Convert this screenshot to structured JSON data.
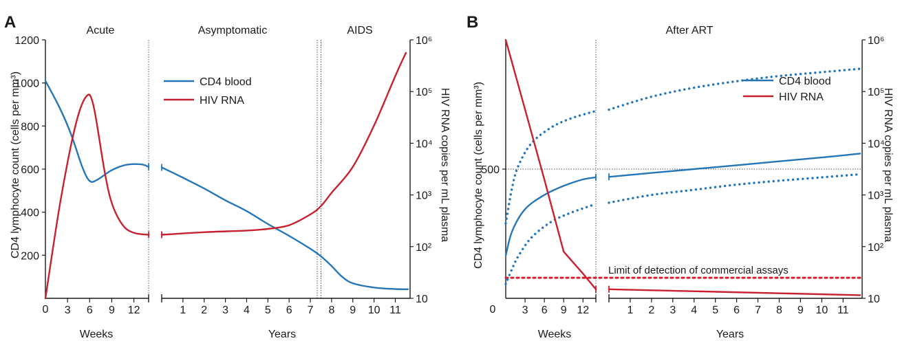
{
  "colors": {
    "cd4": "#2476b8",
    "hiv": "#c8202f",
    "axis": "#1a1a1a"
  },
  "chart_data": [
    {
      "panel": "A",
      "type": "line",
      "phases": [
        "Acute",
        "Asymptomatic",
        "AIDS"
      ],
      "left_axis": {
        "label": "CD4 lymphocyte count (cells per mm³)",
        "ylim": [
          0,
          1200
        ],
        "ticks": [
          "0",
          "200",
          "400",
          "600",
          "800",
          "1000",
          "1200"
        ]
      },
      "right_axis": {
        "label": "HIV RNA copies per mL plasma",
        "scale": "log",
        "ylim": [
          10,
          1000000
        ],
        "ticks": [
          "10",
          "10²",
          "10³",
          "10⁴",
          "10⁵",
          "10⁶"
        ]
      },
      "x_weeks": {
        "label": "Weeks",
        "range": [
          0,
          14
        ],
        "ticks": [
          "3",
          "6",
          "9",
          "12"
        ]
      },
      "x_years": {
        "label": "Years",
        "range": [
          0,
          11.6
        ],
        "ticks": [
          "1",
          "2",
          "3",
          "4",
          "5",
          "6",
          "7",
          "8",
          "9",
          "10",
          "11"
        ]
      },
      "x_origin_label": "0",
      "legend": [
        "CD4 blood",
        "HIV RNA"
      ],
      "series": [
        {
          "name": "CD4 blood",
          "axis": "left",
          "weeks": [
            [
              0,
              1010
            ],
            [
              2,
              880
            ],
            [
              3.5,
              760
            ],
            [
              5,
              610
            ],
            [
              6,
              545
            ],
            [
              7,
              550
            ],
            [
              9,
              595
            ],
            [
              11,
              620
            ],
            [
              13,
              622
            ],
            [
              14,
              610
            ]
          ],
          "years": [
            [
              0,
              608
            ],
            [
              1,
              560
            ],
            [
              2,
              510
            ],
            [
              3,
              455
            ],
            [
              4,
              405
            ],
            [
              5,
              345
            ],
            [
              6,
              290
            ],
            [
              7,
              230
            ],
            [
              7.5,
              195
            ],
            [
              8,
              150
            ],
            [
              8.5,
              100
            ],
            [
              9,
              70
            ],
            [
              10,
              50
            ],
            [
              11,
              43
            ],
            [
              11.6,
              42
            ]
          ]
        },
        {
          "name": "HIV RNA",
          "axis": "right",
          "weeks": [
            [
              0,
              10
            ],
            [
              2,
              700
            ],
            [
              4,
              20000
            ],
            [
              5.5,
              79000
            ],
            [
              6.5,
              55000
            ],
            [
              8,
              3000
            ],
            [
              9,
              700
            ],
            [
              10.5,
              260
            ],
            [
              12,
              185
            ],
            [
              14,
              170
            ]
          ],
          "years": [
            [
              0,
              170
            ],
            [
              2,
              190
            ],
            [
              4,
              205
            ],
            [
              5,
              220
            ],
            [
              6,
              260
            ],
            [
              7,
              420
            ],
            [
              7.5,
              610
            ],
            [
              8,
              1100
            ],
            [
              9,
              3500
            ],
            [
              10,
              22000
            ],
            [
              11,
              200000
            ],
            [
              11.5,
              560000
            ]
          ]
        }
      ]
    },
    {
      "panel": "B",
      "type": "line",
      "phases": [
        "After ART"
      ],
      "left_axis": {
        "label": "CD4 lymphocyte count (cells per mm³)",
        "ylim": [
          0,
          1000
        ],
        "ticks": [
          "500"
        ],
        "reference_line": 500
      },
      "right_axis": {
        "label": "HIV RNA copies per mL plasma",
        "scale": "log",
        "ylim": [
          10,
          1000000
        ],
        "ticks": [
          "10",
          "10²",
          "10³",
          "10⁴",
          "10⁵",
          "10⁶"
        ]
      },
      "x_weeks": {
        "label": "Weeks",
        "range": [
          0,
          14
        ],
        "ticks": [
          "3",
          "6",
          "9",
          "12"
        ]
      },
      "x_years": {
        "label": "Years",
        "range": [
          0,
          11.8
        ],
        "ticks": [
          "1",
          "2",
          "3",
          "4",
          "5",
          "6",
          "7",
          "8",
          "9",
          "10",
          "11"
        ]
      },
      "x_origin_label": "0",
      "legend": [
        "CD4 blood",
        "HIV RNA"
      ],
      "annotation": "Limit of detection of commercial assays",
      "limit_of_detection": 25,
      "series": [
        {
          "name": "CD4 blood",
          "axis": "left",
          "weeks": [
            [
              0,
              165
            ],
            [
              1,
              260
            ],
            [
              3,
              345
            ],
            [
              6,
              400
            ],
            [
              9,
              435
            ],
            [
              12,
              460
            ],
            [
              14,
              468
            ]
          ],
          "years": [
            [
              0,
              470
            ],
            [
              2,
              485
            ],
            [
              4,
              500
            ],
            [
              6,
              515
            ],
            [
              8,
              530
            ],
            [
              10,
              545
            ],
            [
              11.8,
              560
            ]
          ]
        },
        {
          "name": "CD4 upper range",
          "axis": "left",
          "style": "dotted",
          "weeks": [
            [
              0,
              290
            ],
            [
              1,
              430
            ],
            [
              2,
              515
            ],
            [
              4,
              600
            ],
            [
              7,
              660
            ],
            [
              10,
              695
            ],
            [
              14,
              725
            ]
          ],
          "years": [
            [
              0,
              730
            ],
            [
              2,
              780
            ],
            [
              4,
              815
            ],
            [
              6,
              840
            ],
            [
              8,
              860
            ],
            [
              10,
              875
            ],
            [
              11.8,
              888
            ]
          ]
        },
        {
          "name": "CD4 lower range",
          "axis": "left",
          "style": "dotted",
          "weeks": [
            [
              0,
              55
            ],
            [
              1,
              115
            ],
            [
              2,
              165
            ],
            [
              4,
              235
            ],
            [
              7,
              295
            ],
            [
              10,
              330
            ],
            [
              14,
              365
            ]
          ],
          "years": [
            [
              0,
              370
            ],
            [
              2,
              400
            ],
            [
              4,
              420
            ],
            [
              6,
              440
            ],
            [
              8,
              455
            ],
            [
              10,
              468
            ],
            [
              11.8,
              480
            ]
          ]
        },
        {
          "name": "HIV RNA",
          "axis": "right",
          "weeks": [
            [
              0,
              1000000
            ],
            [
              3,
              45000
            ],
            [
              6,
              2000
            ],
            [
              9,
              80
            ],
            [
              12,
              30
            ],
            [
              14,
              15
            ]
          ],
          "years": [
            [
              0,
              15
            ],
            [
              11.8,
              11.5
            ]
          ]
        }
      ]
    }
  ]
}
